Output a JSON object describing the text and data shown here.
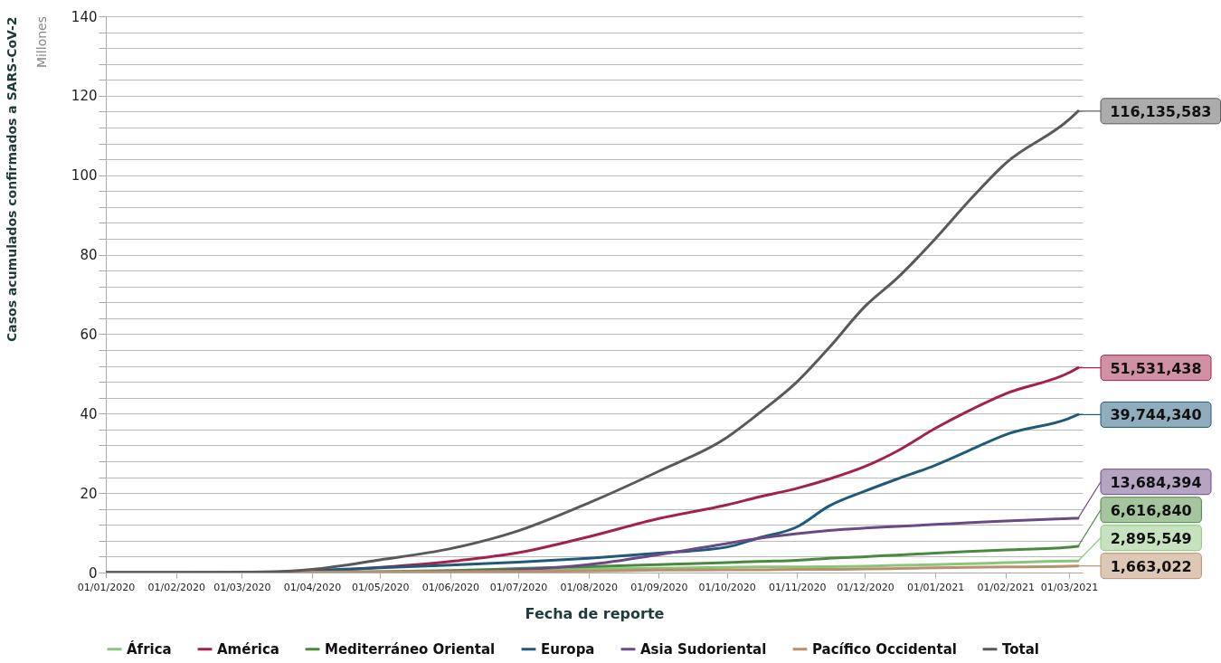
{
  "chart_data": {
    "type": "line",
    "xlabel": "Fecha de reporte",
    "ylabel": "Casos acumulados confirmados a SARS-CoV-2",
    "x": [
      "2020-01-01",
      "2020-02-01",
      "2020-03-01",
      "2020-03-15",
      "2020-04-01",
      "2020-05-01",
      "2020-06-01",
      "2020-07-01",
      "2020-08-01",
      "2020-09-01",
      "2020-10-01",
      "2020-10-15",
      "2020-11-01",
      "2020-11-15",
      "2020-12-01",
      "2020-12-15",
      "2021-01-01",
      "2021-01-15",
      "2021-02-01",
      "2021-03-01",
      "2021-03-05"
    ],
    "series": [
      {
        "name": "África",
        "color": "#8cc47c",
        "values": [
          null,
          null,
          0,
          0,
          0,
          0,
          0.2,
          0.4,
          0.9,
          1.1,
          1.3,
          1.4,
          1.4,
          1.5,
          1.6,
          1.8,
          2,
          2.2,
          2.5,
          2.9,
          2.895549
        ]
      },
      {
        "name": "América",
        "color": "#a3224b",
        "values": [
          null,
          null,
          null,
          null,
          0.2,
          1.3,
          2.8,
          5,
          9,
          13.6,
          17,
          19,
          21.2,
          23.5,
          26.7,
          30.5,
          36.3,
          40.5,
          45,
          50.3,
          51.531438
        ]
      },
      {
        "name": "Mediterráneo Oriental",
        "color": "#4a8a3e",
        "values": [
          null,
          null,
          0,
          0,
          0.1,
          0.2,
          0.5,
          1,
          1.5,
          2,
          2.5,
          2.8,
          3.1,
          3.6,
          4,
          4.4,
          4.9,
          5.3,
          5.7,
          6.4,
          6.61684
        ]
      },
      {
        "name": "Europa",
        "color": "#1f5a7a",
        "values": [
          0,
          0,
          0,
          0.1,
          0.5,
          1.2,
          1.9,
          2.6,
          3.6,
          4.9,
          6.4,
          8.7,
          11.5,
          16.7,
          20.5,
          23.5,
          27,
          30.5,
          34.7,
          38.8,
          39.74434
        ]
      },
      {
        "name": "Asia Sudoriental",
        "color": "#6a4a86",
        "values": [
          0,
          0,
          0,
          0,
          0.1,
          0.1,
          0.3,
          0.7,
          2,
          4.5,
          7.3,
          8.6,
          9.8,
          10.6,
          11.2,
          11.6,
          12.1,
          12.5,
          13,
          13.6,
          13.684394
        ]
      },
      {
        "name": "Pacífico Occidental",
        "color": "#b8916a",
        "values": [
          null,
          null,
          0.1,
          0.1,
          0.1,
          0.2,
          0.2,
          0.3,
          0.4,
          0.6,
          0.7,
          0.7,
          0.8,
          0.8,
          0.9,
          1,
          1.2,
          1.3,
          1.4,
          1.6,
          1.663022
        ]
      },
      {
        "name": "Total",
        "color": "#595959",
        "values": [
          0,
          0,
          0.1,
          0.2,
          0.8,
          3.2,
          6,
          10.5,
          17.5,
          25.5,
          34,
          40,
          48,
          56.5,
          67,
          74,
          84,
          93,
          103,
          114,
          116.135583
        ]
      }
    ],
    "xlim": [
      "2020-01-01",
      "2021-03-07"
    ],
    "xticks": [
      {
        "value": "2020-01-01",
        "label": "01/01/2020"
      },
      {
        "value": "2020-02-01",
        "label": "01/02/2020"
      },
      {
        "value": "2020-03-01",
        "label": "01/03/2020"
      },
      {
        "value": "2020-04-01",
        "label": "01/04/2020"
      },
      {
        "value": "2020-05-01",
        "label": "01/05/2020"
      },
      {
        "value": "2020-06-01",
        "label": "01/06/2020"
      },
      {
        "value": "2020-07-01",
        "label": "01/07/2020"
      },
      {
        "value": "2020-08-01",
        "label": "01/08/2020"
      },
      {
        "value": "2020-09-01",
        "label": "01/09/2020"
      },
      {
        "value": "2020-10-01",
        "label": "01/10/2020"
      },
      {
        "value": "2020-11-01",
        "label": "01/11/2020"
      },
      {
        "value": "2020-12-01",
        "label": "01/12/2020"
      },
      {
        "value": "2021-01-01",
        "label": "01/01/2021"
      },
      {
        "value": "2021-02-01",
        "label": "01/02/2021"
      },
      {
        "value": "2021-03-01",
        "label": "01/03/2021"
      }
    ],
    "ylim": [
      0,
      140
    ],
    "yticks": [
      0,
      {
        "value": 4,
        "label": null
      },
      {
        "value": 8,
        "label": null
      },
      {
        "value": 12,
        "label": null
      },
      {
        "value": 16,
        "label": null
      },
      20,
      {
        "value": 24,
        "label": null
      },
      {
        "value": 28,
        "label": null
      },
      {
        "value": 32,
        "label": null
      },
      {
        "value": 36,
        "label": null
      },
      40,
      {
        "value": 44,
        "label": null
      },
      {
        "value": 48,
        "label": null
      },
      {
        "value": 52,
        "label": null
      },
      {
        "value": 56,
        "label": null
      },
      60,
      {
        "value": 64,
        "label": null
      },
      {
        "value": 68,
        "label": null
      },
      {
        "value": 72,
        "label": null
      },
      {
        "value": 76,
        "label": null
      },
      80,
      {
        "value": 84,
        "label": null
      },
      {
        "value": 88,
        "label": null
      },
      {
        "value": 92,
        "label": null
      },
      {
        "value": 96,
        "label": null
      },
      100,
      {
        "value": 104,
        "label": null
      },
      {
        "value": 108,
        "label": null
      },
      {
        "value": 112,
        "label": null
      },
      {
        "value": 116,
        "label": null
      },
      120,
      {
        "value": 124,
        "label": null
      },
      {
        "value": 128,
        "label": null
      },
      {
        "value": 132,
        "label": null
      },
      {
        "value": 136,
        "label": null
      },
      140
    ],
    "grid": "y",
    "legend": "bottom",
    "marker": "none",
    "line_style": "solid",
    "annotations": [
      "Millones",
      {
        "text": "2,895,549",
        "x": "2021-03-05",
        "y": 2.895549
      },
      {
        "text": "51,531,438",
        "x": "2021-03-05",
        "y": 51.531438
      },
      {
        "text": "6,616,840",
        "x": "2021-03-05",
        "y": 6.61684
      },
      {
        "text": "39,744,340",
        "x": "2021-03-05",
        "y": 39.74434
      },
      {
        "text": "13,684,394",
        "x": "2021-03-05",
        "y": 13.684394
      },
      {
        "text": "1,663,022",
        "x": "2021-03-05",
        "y": 1.663022
      },
      {
        "text": "116,135,583",
        "x": "2021-03-05",
        "y": 116.135583
      }
    ]
  }
}
